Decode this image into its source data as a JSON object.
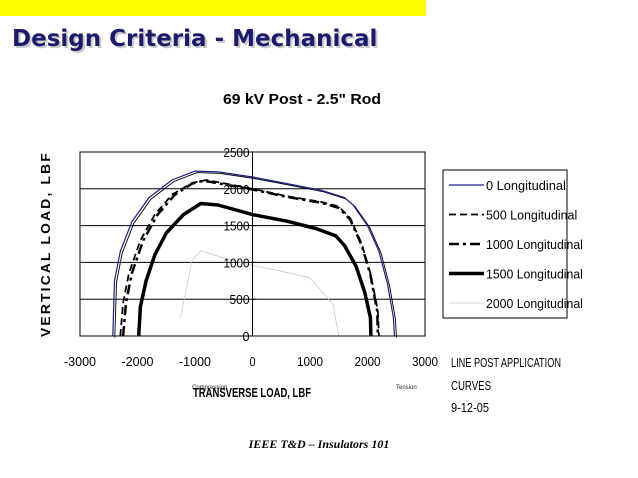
{
  "slide": {
    "title": "Design Criteria - Mechanical",
    "footer": "IEEE T&D – Insulators 101",
    "accent_color": "#ffff00"
  },
  "chart_data": {
    "type": "line",
    "title": "69 kV Post - 2.5\" Rod",
    "xlabel": "TRANSVERSE LOAD, LBF",
    "ylabel": "VERTICAL LOAD, LBF",
    "xlim": [
      -3000,
      3000
    ],
    "ylim": [
      0,
      2500
    ],
    "x_ticks": [
      "-3000",
      "-2000",
      "-1000",
      "0",
      "1000",
      "2000",
      "3000"
    ],
    "y_ticks": [
      "0",
      "500",
      "1000",
      "1500",
      "2000",
      "2500"
    ],
    "grid": true,
    "legend_position": "right",
    "annotations": {
      "left": "Compression",
      "right": "Tension",
      "side_note": [
        "LINE POST APPLICATION",
        "CURVES",
        "9-12-05"
      ]
    },
    "series": [
      {
        "name": "0 Longitudinal",
        "color": "#1f1f8f",
        "style": "solid-double",
        "points": [
          [
            -2430,
            0
          ],
          [
            -2400,
            750
          ],
          [
            -2300,
            1150
          ],
          [
            -2100,
            1550
          ],
          [
            -1800,
            1880
          ],
          [
            -1400,
            2120
          ],
          [
            -1000,
            2240
          ],
          [
            -600,
            2230
          ],
          [
            0,
            2160
          ],
          [
            600,
            2070
          ],
          [
            1200,
            1980
          ],
          [
            1600,
            1880
          ],
          [
            1750,
            1780
          ],
          [
            2000,
            1500
          ],
          [
            2200,
            1150
          ],
          [
            2350,
            700
          ],
          [
            2450,
            250
          ],
          [
            2470,
            0
          ]
        ]
      },
      {
        "name": "500 Longitudinal",
        "color": "#000000",
        "style": "dashed",
        "points": [
          [
            -2300,
            0
          ],
          [
            -2250,
            450
          ],
          [
            -2150,
            850
          ],
          [
            -1950,
            1300
          ],
          [
            -1700,
            1650
          ],
          [
            -1400,
            1920
          ],
          [
            -1050,
            2080
          ],
          [
            -800,
            2120
          ],
          [
            0,
            2000
          ],
          [
            600,
            1900
          ],
          [
            1200,
            1820
          ],
          [
            1500,
            1760
          ],
          [
            1700,
            1600
          ],
          [
            1900,
            1250
          ],
          [
            2050,
            850
          ],
          [
            2180,
            350
          ],
          [
            2200,
            0
          ]
        ]
      },
      {
        "name": "1000 Longitudinal",
        "color": "#000000",
        "style": "dashdot",
        "points": [
          [
            -2250,
            0
          ],
          [
            -2200,
            450
          ],
          [
            -2100,
            850
          ],
          [
            -1900,
            1300
          ],
          [
            -1650,
            1650
          ],
          [
            -1350,
            1920
          ],
          [
            -1050,
            2070
          ],
          [
            -850,
            2110
          ],
          [
            0,
            1990
          ],
          [
            600,
            1890
          ],
          [
            1200,
            1810
          ],
          [
            1500,
            1740
          ],
          [
            1700,
            1580
          ],
          [
            1900,
            1230
          ],
          [
            2050,
            830
          ],
          [
            2170,
            330
          ],
          [
            2180,
            0
          ]
        ]
      },
      {
        "name": "1500 Longitudinal",
        "color": "#000000",
        "style": "thick",
        "points": [
          [
            -1980,
            0
          ],
          [
            -1950,
            400
          ],
          [
            -1850,
            750
          ],
          [
            -1700,
            1100
          ],
          [
            -1500,
            1400
          ],
          [
            -1200,
            1650
          ],
          [
            -900,
            1800
          ],
          [
            -600,
            1780
          ],
          [
            0,
            1650
          ],
          [
            600,
            1560
          ],
          [
            1100,
            1460
          ],
          [
            1450,
            1360
          ],
          [
            1600,
            1230
          ],
          [
            1800,
            950
          ],
          [
            1950,
            600
          ],
          [
            2050,
            250
          ],
          [
            2060,
            0
          ]
        ]
      },
      {
        "name": "2000 Longitudinal",
        "color": "#c8c8d4",
        "style": "hairline",
        "points": [
          [
            -1250,
            250
          ],
          [
            -1150,
            650
          ],
          [
            -1050,
            1020
          ],
          [
            -900,
            1160
          ],
          [
            -500,
            1060
          ],
          [
            0,
            960
          ],
          [
            500,
            880
          ],
          [
            1000,
            790
          ],
          [
            1400,
            430
          ],
          [
            1500,
            0
          ]
        ]
      }
    ]
  }
}
